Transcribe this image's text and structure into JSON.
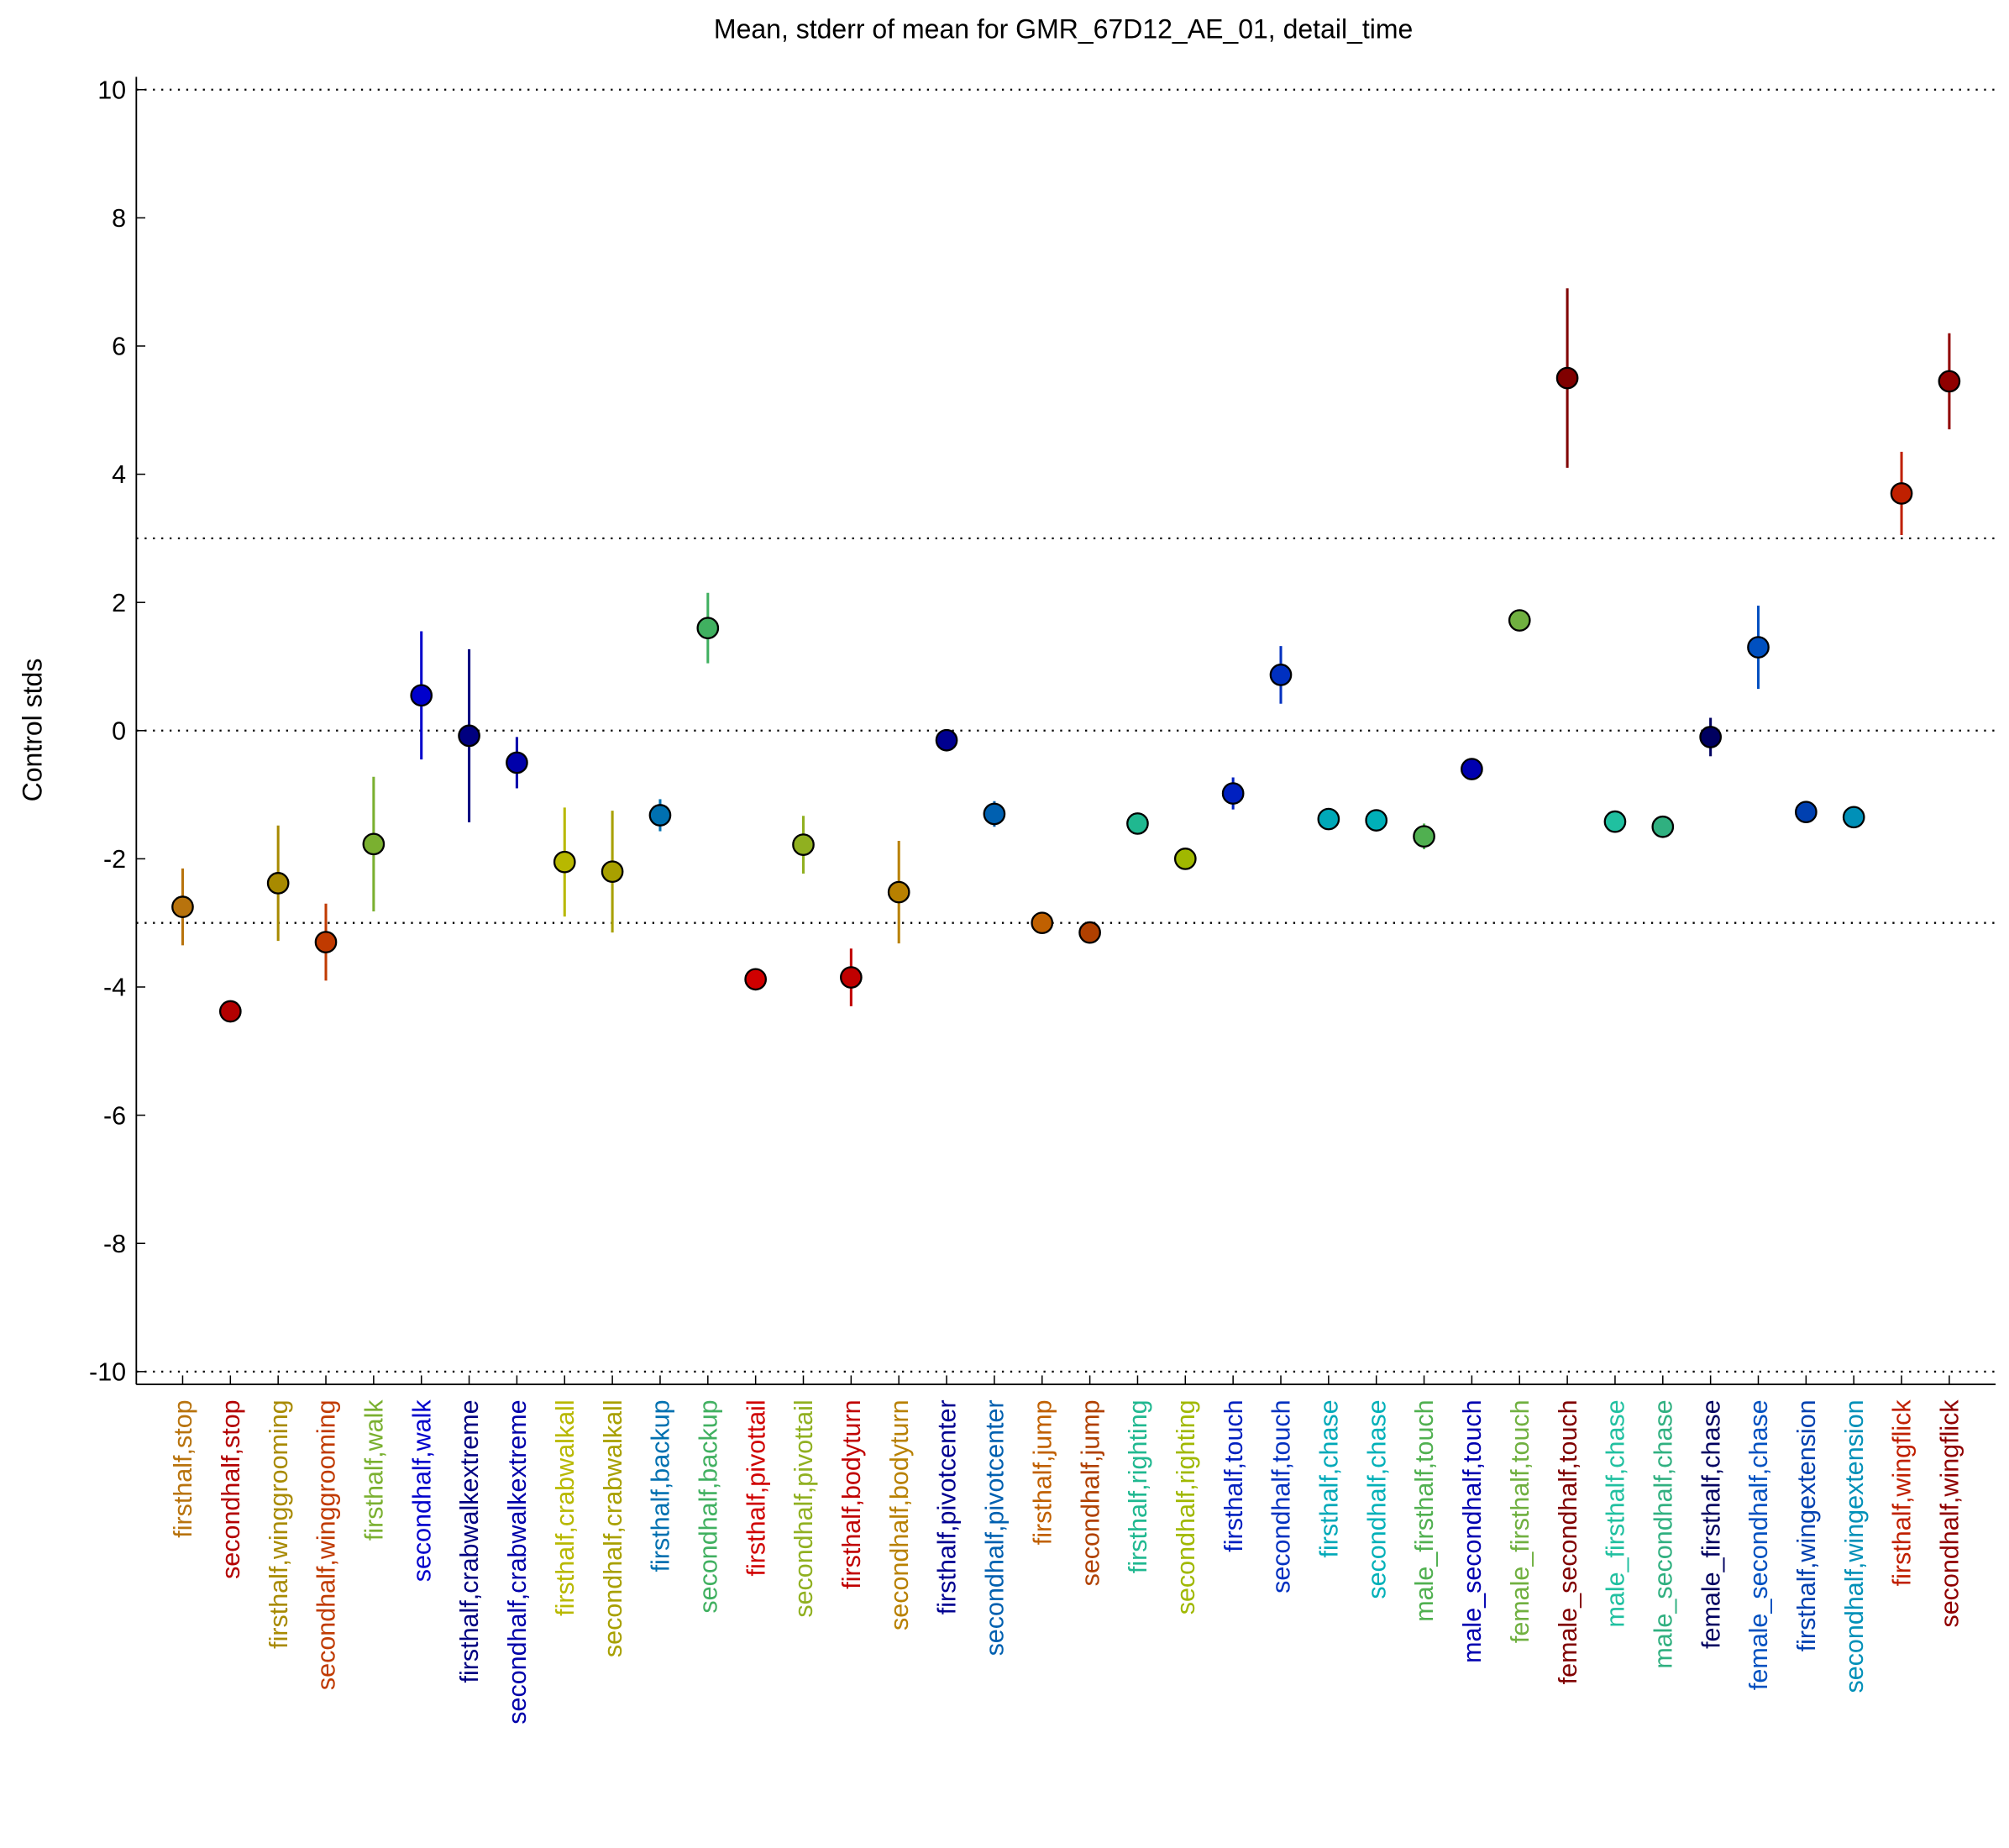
{
  "chart_data": {
    "type": "errorbar",
    "title": "Mean, stderr of mean for GMR_67D12_AE_01, detail_time",
    "y_label": "Control stds",
    "categories": [
      "firsthalf,stop",
      "secondhalf,stop",
      "firsthalf,winggrooming",
      "secondhalf,winggrooming",
      "firsthalf,walk",
      "secondhalf,walk",
      "firsthalf,crabwalkextreme",
      "secondhalf,crabwalkextreme",
      "firsthalf,crabwalkall",
      "secondhalf,crabwalkall",
      "firsthalf,backup",
      "secondhalf,backup",
      "firsthalf,pivottail",
      "secondhalf,pivottail",
      "firsthalf,bodyturn",
      "secondhalf,bodyturn",
      "firsthalf,pivotcenter",
      "secondhalf,pivotcenter",
      "firsthalf,jump",
      "secondhalf,jump",
      "firsthalf,righting",
      "secondhalf,righting",
      "firsthalf,touch",
      "secondhalf,touch",
      "firsthalf,chase",
      "secondhalf,chase",
      "male_firsthalf,touch",
      "male_secondhalf,touch",
      "female_firsthalf,touch",
      "female_secondhalf,touch",
      "male_firsthalf,chase",
      "male_secondhalf,chase",
      "female_firsthalf,chase",
      "female_secondhalf,chase",
      "firsthalf,wingextension",
      "secondhalf,wingextension",
      "firsthalf,wingflick",
      "secondhalf,wingflick"
    ],
    "values": [
      -2.75,
      -4.38,
      -2.38,
      -3.3,
      -1.77,
      0.55,
      -0.08,
      -0.5,
      -2.05,
      -2.2,
      -1.32,
      1.6,
      -3.88,
      -1.78,
      -3.85,
      -2.52,
      -0.15,
      -1.3,
      -3.0,
      -3.15,
      -1.45,
      -2.0,
      -0.98,
      0.87,
      -1.38,
      -1.4,
      -1.65,
      -0.6,
      1.72,
      5.5,
      -1.42,
      -1.5,
      -0.1,
      1.3,
      -1.27,
      -1.35,
      3.7,
      5.45
    ],
    "errors": [
      0.6,
      0.1,
      0.9,
      0.6,
      1.05,
      1.0,
      1.35,
      0.4,
      0.85,
      0.95,
      0.25,
      0.55,
      0.15,
      0.45,
      0.45,
      0.8,
      0.12,
      0.2,
      0.05,
      0.05,
      0.05,
      0.05,
      0.25,
      0.45,
      0.05,
      0.05,
      0.2,
      0.1,
      0.05,
      1.4,
      0.05,
      0.05,
      0.3,
      0.65,
      0.05,
      0.05,
      0.65,
      0.75
    ],
    "colors": [
      "#b8730d",
      "#b30000",
      "#a88a00",
      "#c03a00",
      "#7ab030",
      "#0000cc",
      "#000080",
      "#0000aa",
      "#b8b800",
      "#a8a000",
      "#0070b0",
      "#40b060",
      "#d00000",
      "#90b020",
      "#c00000",
      "#b88000",
      "#000090",
      "#0060b0",
      "#c06000",
      "#b04000",
      "#20b890",
      "#a0b800",
      "#0020c0",
      "#0030c0",
      "#00a8b8",
      "#00b0b8",
      "#50b050",
      "#0000b0",
      "#70b040",
      "#800000",
      "#20c0a0",
      "#30b080",
      "#000060",
      "#0050c0",
      "#0040b0",
      "#0090b8",
      "#c02000",
      "#900000"
    ],
    "ylim": [
      -10.2,
      10.2
    ],
    "yticks": [
      -10,
      -8,
      -6,
      -4,
      -2,
      0,
      2,
      4,
      6,
      8,
      10
    ],
    "hlines": [
      -10,
      -3,
      0,
      3,
      10
    ]
  }
}
